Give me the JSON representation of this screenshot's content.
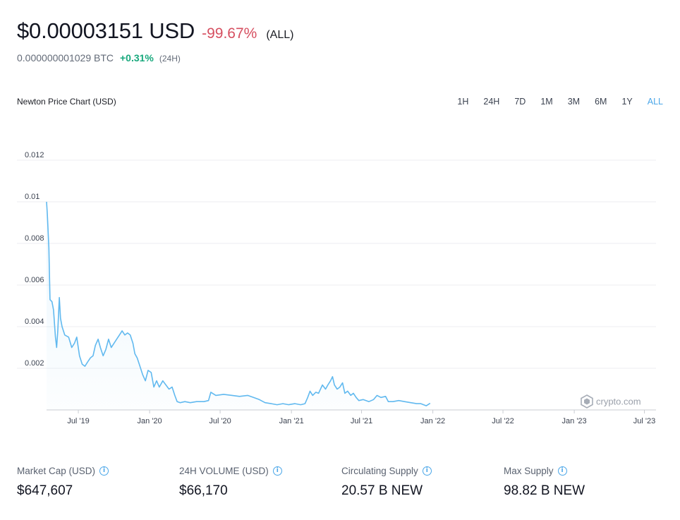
{
  "header": {
    "price": "$0.00003151 USD",
    "change": "-99.67%",
    "period": "(ALL)",
    "btc_price": "0.000000001029 BTC",
    "btc_change": "+0.31%",
    "btc_period": "(24H)"
  },
  "chart_header": {
    "title": "Newton Price Chart (USD)",
    "ranges": [
      "1H",
      "24H",
      "7D",
      "1M",
      "3M",
      "6M",
      "1Y",
      "ALL"
    ],
    "active_range": "ALL"
  },
  "watermark": "crypto.com",
  "colors": {
    "line": "#61b9ef",
    "negative": "#d64f60",
    "positive": "#17a87c",
    "accent": "#4aa6e8"
  },
  "chart_data": {
    "type": "line",
    "title": "Newton Price Chart (USD)",
    "xlabel": "",
    "ylabel": "",
    "ylim": [
      0,
      0.012
    ],
    "yticks": [
      0.002,
      0.004,
      0.006,
      0.008,
      0.01,
      0.012
    ],
    "ytick_labels": [
      "0.002",
      "0.004",
      "0.006",
      "0.008",
      "0.01",
      "0.012"
    ],
    "xlim": [
      "2019-04-10",
      "2023-07-31"
    ],
    "xticks": [
      "2019-07-01",
      "2020-01-01",
      "2020-07-01",
      "2021-01-01",
      "2021-07-01",
      "2022-01-01",
      "2022-07-01",
      "2023-01-01",
      "2023-07-01"
    ],
    "xtick_labels": [
      "Jul '19",
      "Jan '20",
      "Jul '20",
      "Jan '21",
      "Jul '21",
      "Jan '22",
      "Jul '22",
      "Jan '23",
      "Jul '23"
    ],
    "grid": true,
    "series": [
      {
        "points": [
          [
            "2019-04-10",
            0.01
          ],
          [
            "2019-04-12",
            0.0094
          ],
          [
            "2019-04-16",
            0.0078
          ],
          [
            "2019-04-19",
            0.0053
          ],
          [
            "2019-04-24",
            0.0052
          ],
          [
            "2019-04-28",
            0.0048
          ],
          [
            "2019-05-03",
            0.0035
          ],
          [
            "2019-05-06",
            0.003
          ],
          [
            "2019-05-09",
            0.0038
          ],
          [
            "2019-05-13",
            0.0054
          ],
          [
            "2019-05-16",
            0.0044
          ],
          [
            "2019-05-20",
            0.004
          ],
          [
            "2019-05-27",
            0.0036
          ],
          [
            "2019-06-06",
            0.0035
          ],
          [
            "2019-06-14",
            0.003
          ],
          [
            "2019-06-21",
            0.0032
          ],
          [
            "2019-06-27",
            0.0035
          ],
          [
            "2019-07-04",
            0.0026
          ],
          [
            "2019-07-11",
            0.0022
          ],
          [
            "2019-07-18",
            0.0021
          ],
          [
            "2019-07-25",
            0.0023
          ],
          [
            "2019-08-01",
            0.0025
          ],
          [
            "2019-08-08",
            0.0026
          ],
          [
            "2019-08-14",
            0.0031
          ],
          [
            "2019-08-21",
            0.0034
          ],
          [
            "2019-08-27",
            0.003
          ],
          [
            "2019-09-03",
            0.0026
          ],
          [
            "2019-09-10",
            0.0029
          ],
          [
            "2019-09-17",
            0.0034
          ],
          [
            "2019-09-24",
            0.003
          ],
          [
            "2019-10-01",
            0.0032
          ],
          [
            "2019-10-08",
            0.0034
          ],
          [
            "2019-10-15",
            0.0036
          ],
          [
            "2019-10-22",
            0.0038
          ],
          [
            "2019-10-29",
            0.0036
          ],
          [
            "2019-11-05",
            0.0037
          ],
          [
            "2019-11-12",
            0.0036
          ],
          [
            "2019-11-19",
            0.0032
          ],
          [
            "2019-11-24",
            0.0027
          ],
          [
            "2019-11-30",
            0.0025
          ],
          [
            "2019-12-07",
            0.0021
          ],
          [
            "2019-12-14",
            0.0017
          ],
          [
            "2019-12-21",
            0.0014
          ],
          [
            "2019-12-28",
            0.0019
          ],
          [
            "2020-01-05",
            0.0018
          ],
          [
            "2020-01-12",
            0.0011
          ],
          [
            "2020-01-19",
            0.0014
          ],
          [
            "2020-01-26",
            0.0011
          ],
          [
            "2020-02-04",
            0.0014
          ],
          [
            "2020-02-12",
            0.0012
          ],
          [
            "2020-02-20",
            0.001
          ],
          [
            "2020-02-28",
            0.0011
          ],
          [
            "2020-03-06",
            0.0007
          ],
          [
            "2020-03-12",
            0.0004
          ],
          [
            "2020-03-20",
            0.00035
          ],
          [
            "2020-04-01",
            0.0004
          ],
          [
            "2020-04-15",
            0.00035
          ],
          [
            "2020-05-01",
            0.0004
          ],
          [
            "2020-05-20",
            0.0004
          ],
          [
            "2020-06-01",
            0.00045
          ],
          [
            "2020-06-07",
            0.00085
          ],
          [
            "2020-06-20",
            0.0007
          ],
          [
            "2020-07-10",
            0.00075
          ],
          [
            "2020-08-01",
            0.0007
          ],
          [
            "2020-08-20",
            0.00065
          ],
          [
            "2020-09-10",
            0.0007
          ],
          [
            "2020-09-25",
            0.0006
          ],
          [
            "2020-10-10",
            0.0005
          ],
          [
            "2020-10-25",
            0.00035
          ],
          [
            "2020-11-10",
            0.0003
          ],
          [
            "2020-11-25",
            0.00025
          ],
          [
            "2020-12-10",
            0.0003
          ],
          [
            "2020-12-25",
            0.00025
          ],
          [
            "2021-01-10",
            0.0003
          ],
          [
            "2021-01-25",
            0.00025
          ],
          [
            "2021-02-05",
            0.0003
          ],
          [
            "2021-02-12",
            0.0006
          ],
          [
            "2021-02-18",
            0.0009
          ],
          [
            "2021-02-25",
            0.0007
          ],
          [
            "2021-03-05",
            0.00085
          ],
          [
            "2021-03-12",
            0.0008
          ],
          [
            "2021-03-22",
            0.0012
          ],
          [
            "2021-03-30",
            0.001
          ],
          [
            "2021-04-05",
            0.0012
          ],
          [
            "2021-04-12",
            0.0014
          ],
          [
            "2021-04-17",
            0.0016
          ],
          [
            "2021-04-22",
            0.0012
          ],
          [
            "2021-04-29",
            0.001
          ],
          [
            "2021-05-06",
            0.0011
          ],
          [
            "2021-05-13",
            0.0013
          ],
          [
            "2021-05-19",
            0.0008
          ],
          [
            "2021-05-26",
            0.0009
          ],
          [
            "2021-06-03",
            0.0007
          ],
          [
            "2021-06-10",
            0.0008
          ],
          [
            "2021-06-17",
            0.0006
          ],
          [
            "2021-06-24",
            0.00045
          ],
          [
            "2021-07-05",
            0.0005
          ],
          [
            "2021-07-20",
            0.0004
          ],
          [
            "2021-08-01",
            0.0005
          ],
          [
            "2021-08-10",
            0.0007
          ],
          [
            "2021-08-20",
            0.0006
          ],
          [
            "2021-09-01",
            0.00065
          ],
          [
            "2021-09-08",
            0.0004
          ],
          [
            "2021-09-20",
            0.0004
          ],
          [
            "2021-10-05",
            0.00045
          ],
          [
            "2021-10-20",
            0.0004
          ],
          [
            "2021-11-05",
            0.00035
          ],
          [
            "2021-11-20",
            0.0003
          ],
          [
            "2021-12-01",
            0.0003
          ],
          [
            "2021-12-15",
            0.0002
          ],
          [
            "2021-12-25",
            0.00032
          ]
        ]
      }
    ]
  },
  "stats": [
    {
      "label": "Market Cap (USD)",
      "value": "$647,607"
    },
    {
      "label": "24H VOLUME (USD)",
      "value": "$66,170"
    },
    {
      "label": "Circulating Supply",
      "value": "20.57 B NEW"
    },
    {
      "label": "Max Supply",
      "value": "98.82 B NEW"
    }
  ]
}
